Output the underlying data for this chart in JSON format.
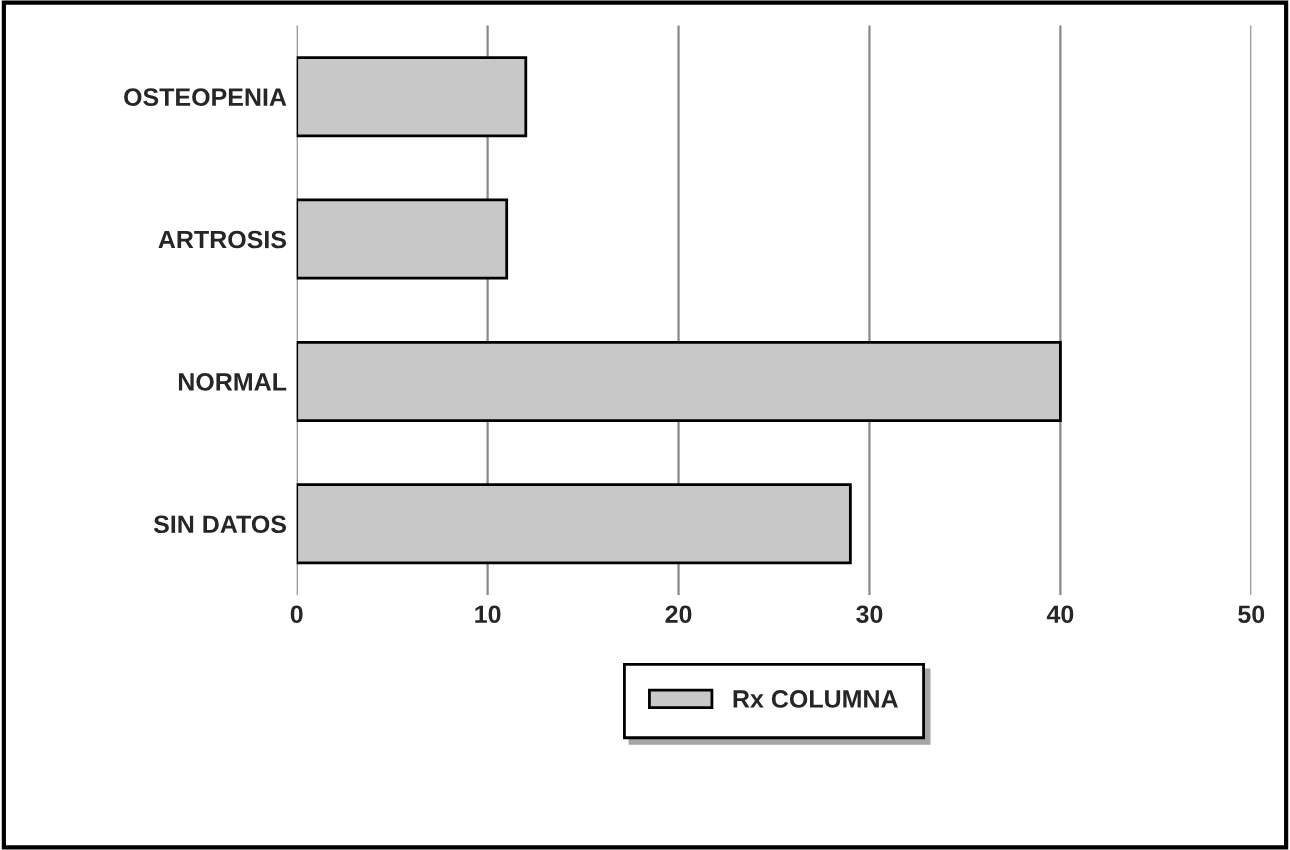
{
  "chart_data": {
    "type": "bar",
    "orientation": "horizontal",
    "categories": [
      "OSTEOPENIA",
      "ARTROSIS",
      "NORMAL",
      "SIN DATOS"
    ],
    "series": [
      {
        "name": "Rx COLUMNA",
        "color": "#c8c8c8",
        "values": [
          12,
          11,
          40,
          29
        ]
      }
    ],
    "xlim": [
      0,
      50
    ],
    "xticks": [
      0,
      10,
      20,
      30,
      40,
      50
    ],
    "grid": "x",
    "legend": "bottom"
  }
}
